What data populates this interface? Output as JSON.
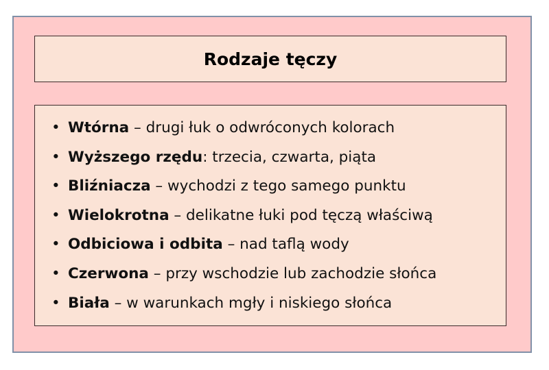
{
  "title": "Rodzaje tęczy",
  "items": [
    {
      "term": "Wtórna",
      "desc": " – drugi łuk o odwróconych kolorach"
    },
    {
      "term": "Wyższego rzędu",
      "desc": ": trzecia, czwarta, piąta"
    },
    {
      "term": "Bliźniacza",
      "desc": " – wychodzi z tego samego punktu"
    },
    {
      "term": "Wielokrotna",
      "desc": " – delikatne łuki pod tęczą właściwą"
    },
    {
      "term": "Odbiciowa i odbita",
      "desc": " – nad taflą wody"
    },
    {
      "term": "Czerwona",
      "desc": " – przy wschodzie lub zachodzie słońca"
    },
    {
      "term": "Biała",
      "desc": " – w warunkach mgły i niskiego słońca"
    }
  ],
  "colors": {
    "outer_fill": "#ffcaca",
    "inner_fill": "#fbe3d6",
    "outer_border": "#8090a8"
  }
}
